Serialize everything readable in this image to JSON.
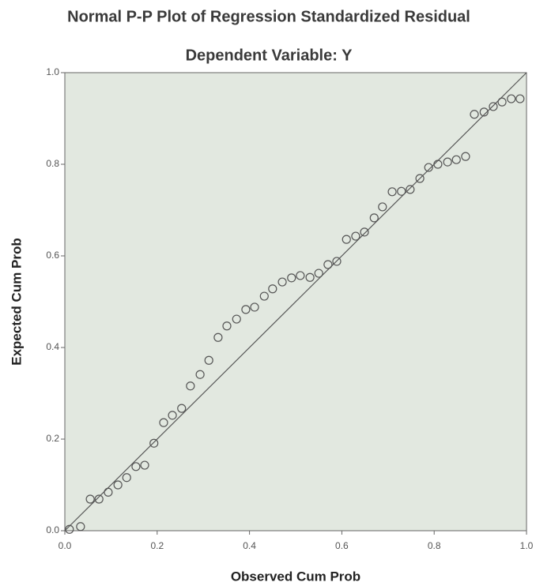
{
  "chart_data": {
    "type": "scatter",
    "title": "Normal P-P Plot of Regression Standardized Residual",
    "subtitle": "Dependent Variable: Y",
    "x_label": "Observed Cum Prob",
    "y_label": "Expected Cum Prob",
    "xlim": [
      0,
      1
    ],
    "ylim": [
      0,
      1
    ],
    "xticks": [
      {
        "value": 0,
        "label": "0.0"
      },
      {
        "value": 0.2,
        "label": "0.2"
      },
      {
        "value": 0.4,
        "label": "0.4"
      },
      {
        "value": 0.6,
        "label": "0.6"
      },
      {
        "value": 0.8,
        "label": "0.8"
      },
      {
        "value": 1,
        "label": "1.0"
      }
    ],
    "yticks": [
      {
        "value": 0,
        "label": "0.0"
      },
      {
        "value": 0.2,
        "label": "0.2"
      },
      {
        "value": 0.4,
        "label": "0.4"
      },
      {
        "value": 0.6,
        "label": "0.6"
      },
      {
        "value": 0.8,
        "label": "0.8"
      },
      {
        "value": 1,
        "label": "1.0"
      }
    ],
    "color": "#555555",
    "x": [
      0.01,
      0.034,
      0.055,
      0.074,
      0.094,
      0.115,
      0.134,
      0.154,
      0.173,
      0.193,
      0.214,
      0.233,
      0.253,
      0.272,
      0.293,
      0.312,
      0.332,
      0.351,
      0.372,
      0.392,
      0.411,
      0.432,
      0.45,
      0.471,
      0.491,
      0.51,
      0.531,
      0.55,
      0.57,
      0.589,
      0.61,
      0.63,
      0.649,
      0.67,
      0.688,
      0.709,
      0.729,
      0.748,
      0.769,
      0.788,
      0.808,
      0.829,
      0.848,
      0.868,
      0.887,
      0.908,
      0.928,
      0.947,
      0.967,
      0.986
    ],
    "values": [
      0.003,
      0.009,
      0.069,
      0.069,
      0.084,
      0.1,
      0.116,
      0.14,
      0.143,
      0.191,
      0.236,
      0.252,
      0.267,
      0.316,
      0.341,
      0.372,
      0.422,
      0.447,
      0.462,
      0.483,
      0.488,
      0.512,
      0.528,
      0.543,
      0.552,
      0.557,
      0.553,
      0.562,
      0.581,
      0.588,
      0.636,
      0.643,
      0.652,
      0.683,
      0.707,
      0.74,
      0.741,
      0.745,
      0.769,
      0.793,
      0.8,
      0.805,
      0.81,
      0.817,
      0.909,
      0.914,
      0.926,
      0.936,
      0.943,
      0.943
    ]
  }
}
